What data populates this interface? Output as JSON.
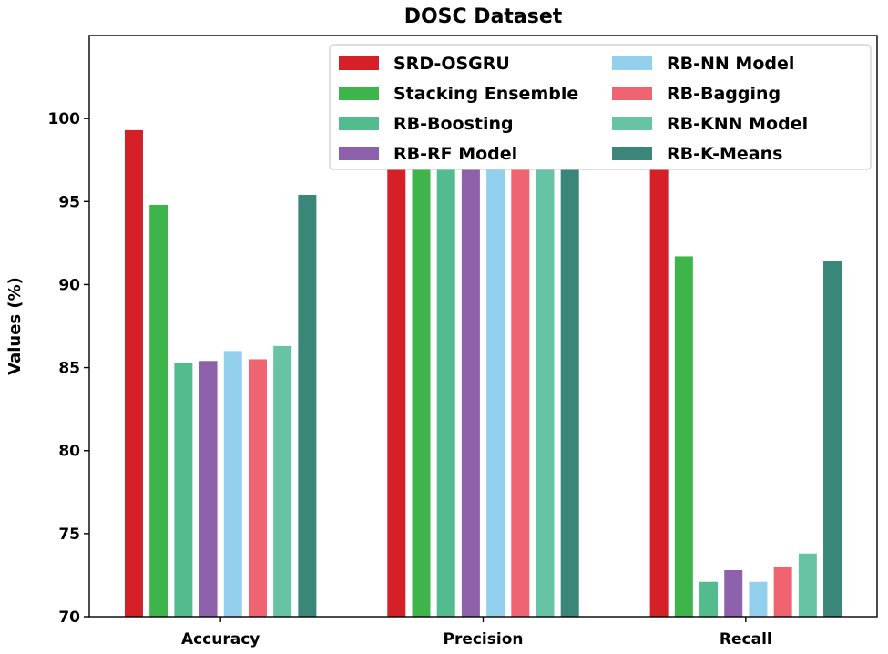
{
  "chart_data": {
    "type": "bar",
    "title": "DOSC Dataset",
    "xlabel": "",
    "ylabel": "Values (%)",
    "ylim": [
      70,
      105
    ],
    "yticks": [
      70,
      75,
      80,
      85,
      90,
      95,
      100
    ],
    "categories": [
      "Accuracy",
      "Precision",
      "Recall"
    ],
    "grid": false,
    "legend_position": "top-right",
    "series": [
      {
        "name": "SRD-OSGRU",
        "color": "#d62027",
        "values": [
          99.3,
          99.3,
          99.2
        ]
      },
      {
        "name": "Stacking Ensemble",
        "color": "#3eb54a",
        "values": [
          94.8,
          98.5,
          91.7
        ]
      },
      {
        "name": "RB-Boosting",
        "color": "#52bc8f",
        "values": [
          85.3,
          97.5,
          72.1
        ]
      },
      {
        "name": "RB-RF Model",
        "color": "#8e61ab",
        "values": [
          85.4,
          97.8,
          72.8
        ]
      },
      {
        "name": "RB-NN Model",
        "color": "#93d0ee",
        "values": [
          86.0,
          99.2,
          72.1
        ]
      },
      {
        "name": "RB-Bagging",
        "color": "#ef6470",
        "values": [
          85.5,
          97.6,
          73.0
        ]
      },
      {
        "name": "RB-KNN Model",
        "color": "#66c4a4",
        "values": [
          86.3,
          97.8,
          73.8
        ]
      },
      {
        "name": "RB-K-Means",
        "color": "#3a877a",
        "values": [
          95.4,
          99.0,
          91.4
        ]
      }
    ]
  }
}
